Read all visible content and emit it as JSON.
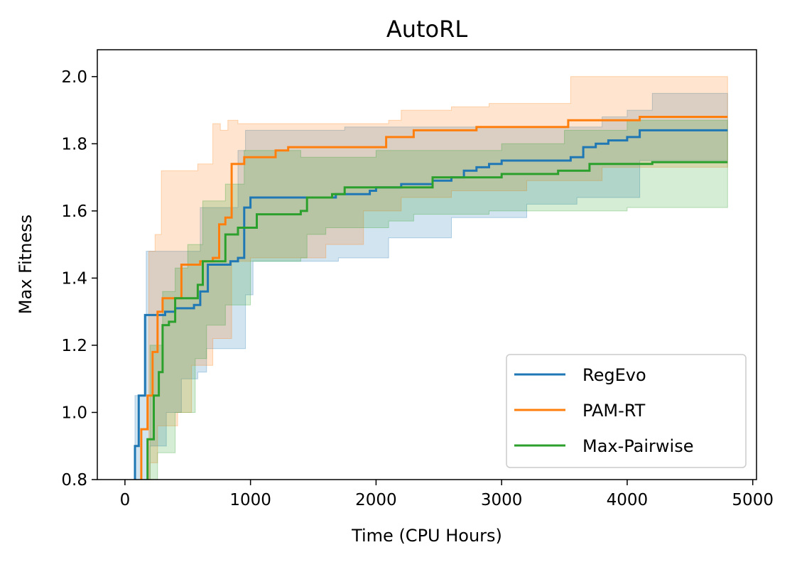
{
  "chart_data": {
    "type": "line",
    "title": "AutoRL",
    "xlabel": "Time (CPU Hours)",
    "ylabel": "Max Fitness",
    "xlim": [
      -220,
      5030
    ],
    "ylim": [
      0.8,
      2.08
    ],
    "xticks": [
      0,
      1000,
      2000,
      3000,
      4000,
      5000
    ],
    "xtick_labels": [
      "0",
      "1000",
      "2000",
      "3000",
      "4000",
      "5000"
    ],
    "yticks": [
      0.8,
      1.0,
      1.2,
      1.4,
      1.6,
      1.8,
      2.0
    ],
    "ytick_labels": [
      "0.8",
      "1.0",
      "1.2",
      "1.4",
      "1.6",
      "1.8",
      "2.0"
    ],
    "grid": false,
    "legend_position": "lower-right",
    "series": [
      {
        "name": "RegEvo",
        "color": "#1f77b4",
        "points": [
          [
            50,
            0.78
          ],
          [
            80,
            0.9
          ],
          [
            110,
            1.05
          ],
          [
            160,
            1.29
          ],
          [
            280,
            1.29
          ],
          [
            320,
            1.3
          ],
          [
            400,
            1.31
          ],
          [
            550,
            1.32
          ],
          [
            600,
            1.36
          ],
          [
            660,
            1.44
          ],
          [
            840,
            1.45
          ],
          [
            900,
            1.46
          ],
          [
            950,
            1.61
          ],
          [
            1000,
            1.64
          ],
          [
            1600,
            1.64
          ],
          [
            1680,
            1.65
          ],
          [
            1950,
            1.66
          ],
          [
            2000,
            1.67
          ],
          [
            2200,
            1.68
          ],
          [
            2450,
            1.69
          ],
          [
            2600,
            1.7
          ],
          [
            2700,
            1.72
          ],
          [
            2800,
            1.73
          ],
          [
            2900,
            1.74
          ],
          [
            3000,
            1.75
          ],
          [
            3550,
            1.76
          ],
          [
            3650,
            1.79
          ],
          [
            3750,
            1.8
          ],
          [
            3850,
            1.81
          ],
          [
            4000,
            1.82
          ],
          [
            4100,
            1.84
          ],
          [
            4800,
            1.84
          ]
        ],
        "upper": [
          [
            50,
            0.8
          ],
          [
            80,
            1.05
          ],
          [
            170,
            1.48
          ],
          [
            380,
            1.48
          ],
          [
            600,
            1.61
          ],
          [
            900,
            1.78
          ],
          [
            960,
            1.84
          ],
          [
            1500,
            1.84
          ],
          [
            1750,
            1.85
          ],
          [
            2100,
            1.85
          ],
          [
            3800,
            1.88
          ],
          [
            4000,
            1.9
          ],
          [
            4200,
            1.95
          ],
          [
            4800,
            1.95
          ]
        ],
        "lower": [
          [
            50,
            0.7
          ],
          [
            200,
            0.9
          ],
          [
            330,
            1.0
          ],
          [
            450,
            1.1
          ],
          [
            580,
            1.12
          ],
          [
            650,
            1.19
          ],
          [
            900,
            1.19
          ],
          [
            960,
            1.35
          ],
          [
            1020,
            1.45
          ],
          [
            1700,
            1.46
          ],
          [
            2100,
            1.52
          ],
          [
            2600,
            1.58
          ],
          [
            3200,
            1.62
          ],
          [
            3600,
            1.64
          ],
          [
            4100,
            1.75
          ],
          [
            4800,
            1.75
          ]
        ]
      },
      {
        "name": "PAM-RT",
        "color": "#ff7f0e",
        "points": [
          [
            90,
            0.78
          ],
          [
            130,
            0.95
          ],
          [
            180,
            1.05
          ],
          [
            220,
            1.18
          ],
          [
            260,
            1.3
          ],
          [
            300,
            1.34
          ],
          [
            400,
            1.34
          ],
          [
            450,
            1.44
          ],
          [
            600,
            1.45
          ],
          [
            700,
            1.46
          ],
          [
            750,
            1.56
          ],
          [
            800,
            1.58
          ],
          [
            850,
            1.74
          ],
          [
            900,
            1.74
          ],
          [
            950,
            1.76
          ],
          [
            1100,
            1.76
          ],
          [
            1200,
            1.78
          ],
          [
            1300,
            1.79
          ],
          [
            1500,
            1.79
          ],
          [
            1650,
            1.79
          ],
          [
            2000,
            1.79
          ],
          [
            2080,
            1.82
          ],
          [
            2300,
            1.84
          ],
          [
            2800,
            1.85
          ],
          [
            3500,
            1.85
          ],
          [
            3530,
            1.87
          ],
          [
            4100,
            1.88
          ],
          [
            4800,
            1.88
          ]
        ],
        "upper": [
          [
            90,
            0.8
          ],
          [
            190,
            1.48
          ],
          [
            240,
            1.53
          ],
          [
            290,
            1.72
          ],
          [
            420,
            1.72
          ],
          [
            580,
            1.74
          ],
          [
            700,
            1.86
          ],
          [
            760,
            1.84
          ],
          [
            820,
            1.87
          ],
          [
            900,
            1.86
          ],
          [
            2100,
            1.87
          ],
          [
            2200,
            1.9
          ],
          [
            2600,
            1.91
          ],
          [
            2900,
            1.92
          ],
          [
            3500,
            1.92
          ],
          [
            3550,
            2.0
          ],
          [
            4800,
            2.0
          ]
        ],
        "lower": [
          [
            90,
            0.7
          ],
          [
            200,
            0.85
          ],
          [
            260,
            0.96
          ],
          [
            420,
            1.0
          ],
          [
            530,
            1.14
          ],
          [
            700,
            1.22
          ],
          [
            850,
            1.45
          ],
          [
            1000,
            1.46
          ],
          [
            1600,
            1.5
          ],
          [
            1900,
            1.6
          ],
          [
            2200,
            1.64
          ],
          [
            2600,
            1.66
          ],
          [
            3200,
            1.69
          ],
          [
            3800,
            1.73
          ],
          [
            4800,
            1.74
          ]
        ]
      },
      {
        "name": "Max-Pairwise",
        "color": "#2ca02c",
        "points": [
          [
            150,
            0.78
          ],
          [
            180,
            0.92
          ],
          [
            230,
            1.05
          ],
          [
            270,
            1.12
          ],
          [
            300,
            1.26
          ],
          [
            350,
            1.27
          ],
          [
            400,
            1.34
          ],
          [
            520,
            1.34
          ],
          [
            580,
            1.38
          ],
          [
            620,
            1.45
          ],
          [
            750,
            1.45
          ],
          [
            800,
            1.53
          ],
          [
            900,
            1.55
          ],
          [
            1000,
            1.55
          ],
          [
            1050,
            1.59
          ],
          [
            1300,
            1.59
          ],
          [
            1400,
            1.6
          ],
          [
            1450,
            1.64
          ],
          [
            1650,
            1.65
          ],
          [
            1750,
            1.67
          ],
          [
            1900,
            1.67
          ],
          [
            2450,
            1.7
          ],
          [
            3000,
            1.71
          ],
          [
            3200,
            1.71
          ],
          [
            3450,
            1.72
          ],
          [
            3700,
            1.74
          ],
          [
            4100,
            1.74
          ],
          [
            4200,
            1.745
          ],
          [
            4800,
            1.745
          ]
        ],
        "upper": [
          [
            150,
            0.8
          ],
          [
            200,
            1.2
          ],
          [
            300,
            1.36
          ],
          [
            400,
            1.43
          ],
          [
            500,
            1.5
          ],
          [
            620,
            1.63
          ],
          [
            800,
            1.68
          ],
          [
            950,
            1.78
          ],
          [
            1100,
            1.78
          ],
          [
            1400,
            1.76
          ],
          [
            2000,
            1.78
          ],
          [
            2400,
            1.78
          ],
          [
            3000,
            1.8
          ],
          [
            3500,
            1.84
          ],
          [
            4000,
            1.87
          ],
          [
            4800,
            1.87
          ]
        ],
        "lower": [
          [
            150,
            0.7
          ],
          [
            260,
            0.88
          ],
          [
            400,
            1.0
          ],
          [
            560,
            1.16
          ],
          [
            650,
            1.26
          ],
          [
            800,
            1.32
          ],
          [
            1000,
            1.45
          ],
          [
            1400,
            1.46
          ],
          [
            1450,
            1.53
          ],
          [
            1600,
            1.55
          ],
          [
            2100,
            1.57
          ],
          [
            2300,
            1.59
          ],
          [
            2900,
            1.6
          ],
          [
            3500,
            1.6
          ],
          [
            4000,
            1.61
          ],
          [
            4800,
            1.61
          ]
        ]
      }
    ]
  }
}
